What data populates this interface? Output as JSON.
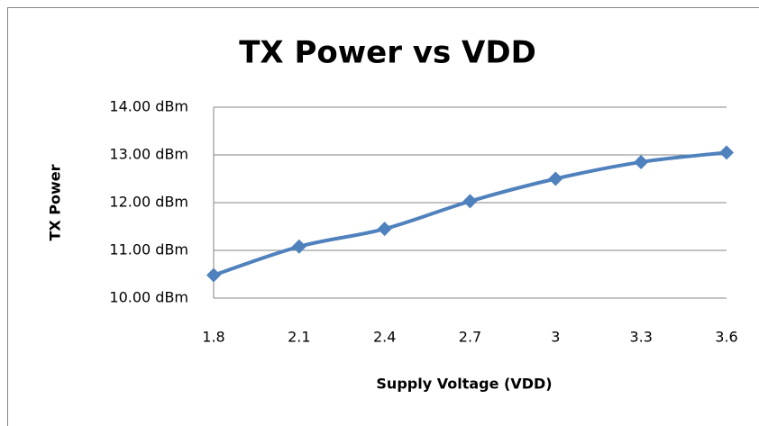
{
  "chart_data": {
    "type": "line",
    "title": "TX Power vs VDD",
    "x_label": "Supply Voltage (VDD)",
    "y_label": "TX Power",
    "categories": [
      "1.8",
      "2.1",
      "2.4",
      "2.7",
      "3",
      "3.3",
      "3.6"
    ],
    "series": [
      {
        "name": "TX Power",
        "color": "#4f81bd",
        "values": [
          10.48,
          11.08,
          11.45,
          12.03,
          12.5,
          12.85,
          13.05
        ]
      }
    ],
    "ylim": [
      10,
      14
    ],
    "yticks": [
      {
        "value": 10,
        "label": "10.00 dBm"
      },
      {
        "value": 11,
        "label": "11.00 dBm"
      },
      {
        "value": 12,
        "label": "12.00 dBm"
      },
      {
        "value": 13,
        "label": "13.00 dBm"
      },
      {
        "value": 14,
        "label": "14.00 dBm"
      }
    ],
    "grid": true
  }
}
